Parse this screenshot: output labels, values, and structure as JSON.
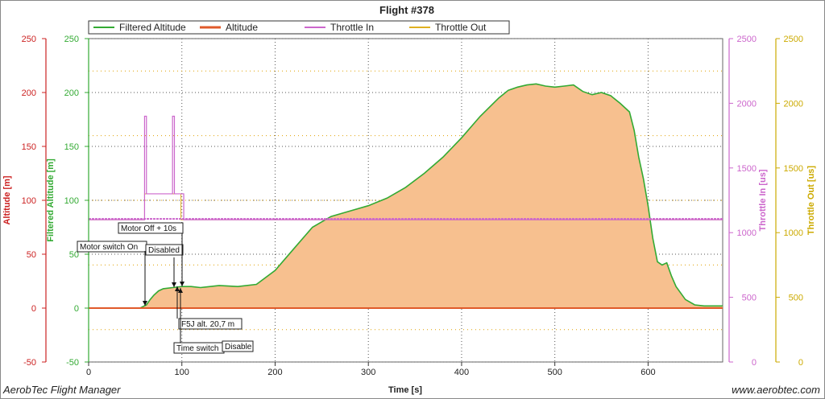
{
  "footer": {
    "left": "AerobTec Flight Manager",
    "right": "www.aerobtec.com"
  },
  "colors": {
    "filtered": "#33aa33",
    "altitude": "#e05a2a",
    "altitude_fill": "#f7c08f",
    "throttle_in": "#cc66cc",
    "throttle_out": "#e0b020",
    "alt_axis": "#cc2222",
    "filt_axis": "#33aa33",
    "thr_in_axis": "#cc66cc",
    "thr_out_axis": "#ccaa00"
  },
  "chart_data": {
    "type": "area",
    "title": "Flight #378",
    "xlabel": "Time [s]",
    "xlim": [
      0,
      680
    ],
    "xticks": [
      0,
      100,
      200,
      300,
      400,
      500,
      600
    ],
    "y_axes": [
      {
        "label": "Altitude [m]",
        "ticks": [
          -50,
          0,
          50,
          100,
          150,
          200,
          250
        ],
        "lim": [
          -50,
          250
        ]
      },
      {
        "label": "Filtered Altitude [m]",
        "ticks": [
          -50,
          0,
          50,
          100,
          150,
          200,
          250
        ],
        "lim": [
          -50,
          250
        ]
      },
      {
        "label": "Throttle In [us]",
        "ticks": [
          0,
          500,
          1000,
          1500,
          2000,
          2500
        ],
        "lim": [
          0,
          2500
        ]
      },
      {
        "label": "Throttle Out [us]",
        "ticks": [
          0,
          500,
          1000,
          1500,
          2000,
          2500
        ],
        "lim": [
          0,
          2500
        ]
      }
    ],
    "legend": [
      "Filtered Altitude",
      "Altitude",
      "Throttle In",
      "Throttle Out"
    ],
    "legend_placement": "top",
    "grid": true,
    "series": [
      {
        "name": "Filtered Altitude",
        "x": [
          0,
          40,
          55,
          62,
          66,
          70,
          75,
          80,
          90,
          100,
          110,
          120,
          140,
          160,
          180,
          200,
          220,
          240,
          260,
          280,
          300,
          320,
          340,
          360,
          380,
          400,
          420,
          440,
          450,
          460,
          470,
          480,
          490,
          500,
          510,
          520,
          530,
          540,
          550,
          560,
          570,
          580,
          585,
          590,
          595,
          600,
          605,
          610,
          615,
          620,
          625,
          630,
          640,
          650,
          660,
          680
        ],
        "y": [
          0,
          0,
          0,
          3,
          8,
          12,
          16,
          18,
          19,
          20,
          20,
          19,
          21,
          20,
          22,
          35,
          55,
          75,
          85,
          90,
          95,
          102,
          112,
          125,
          140,
          158,
          178,
          195,
          202,
          205,
          207,
          208,
          206,
          205,
          206,
          207,
          201,
          198,
          200,
          197,
          190,
          182,
          165,
          140,
          120,
          95,
          65,
          43,
          40,
          42,
          30,
          20,
          8,
          3,
          2,
          2
        ]
      },
      {
        "name": "Altitude",
        "x": [
          0,
          680
        ],
        "y": [
          0,
          0
        ]
      },
      {
        "name": "Throttle In",
        "x": [
          0,
          60,
          60,
          62,
          62,
          66,
          66,
          90,
          90,
          92,
          92,
          100,
          100,
          102,
          102,
          680
        ],
        "y": [
          1100,
          1100,
          1900,
          1900,
          1300,
          1300,
          1300,
          1300,
          1900,
          1900,
          1300,
          1300,
          1300,
          1300,
          1100,
          1100
        ]
      },
      {
        "name": "Throttle Out",
        "x": [
          0,
          60,
          60,
          66,
          66,
          99,
          99,
          101,
          101,
          680
        ],
        "y": [
          1100,
          1100,
          1300,
          1300,
          1300,
          1300,
          1100,
          1100,
          1100,
          1100
        ]
      }
    ],
    "annotations": [
      {
        "text": "Motor switch On",
        "x": 60,
        "y": 55
      },
      {
        "text": "Motor Off + 10s",
        "x": 101,
        "y": 71
      },
      {
        "text": "Disabled",
        "x": 101,
        "y": 48
      },
      {
        "text": "F5J alt. 20,7 m",
        "x": 92,
        "y": 20.7
      },
      {
        "text": "Time switch",
        "x": 92,
        "y": -33
      },
      {
        "text": "Disable",
        "x": 140,
        "y": -33
      }
    ]
  }
}
